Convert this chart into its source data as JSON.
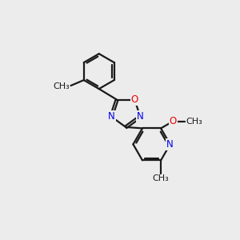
{
  "bg_color": "#ececec",
  "bond_color": "#1a1a1a",
  "bond_width": 1.6,
  "atom_colors": {
    "N": "#0000ee",
    "O": "#ee0000",
    "C": "#1a1a1a"
  },
  "font_size": 8.5,
  "fig_size": [
    3.0,
    3.0
  ],
  "dpi": 100,
  "xlim": [
    0,
    10
  ],
  "ylim": [
    0,
    10
  ]
}
